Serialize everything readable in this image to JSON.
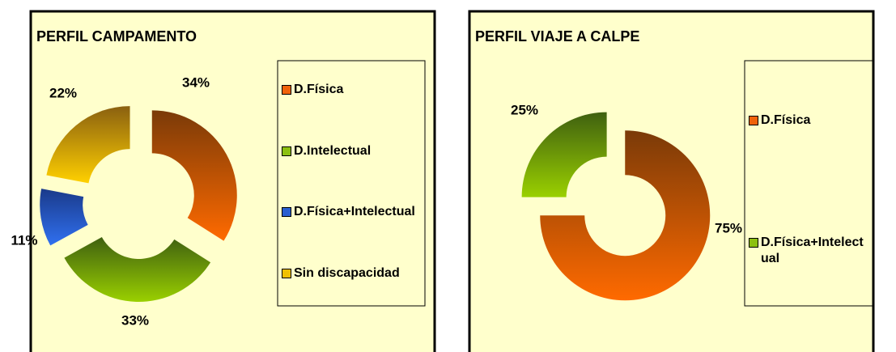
{
  "chart_data": [
    {
      "type": "donut",
      "title": "PERFIL CAMPAMENTO",
      "categories": [
        "D.Física",
        "D.Intelectual",
        "D.Física+Intelectual",
        "Sin discapacidad"
      ],
      "values": [
        34,
        33,
        11,
        22
      ],
      "value_labels": [
        "34%",
        "33%",
        "11%",
        "22%"
      ],
      "colors": [
        "#f0620a",
        "#8cc010",
        "#2a5fd0",
        "#f0c000"
      ]
    },
    {
      "type": "donut",
      "title": "PERFIL VIAJE A CALPE",
      "categories": [
        "D.Física",
        "D.Física+Intelectual"
      ],
      "values": [
        75,
        25
      ],
      "value_labels": [
        "75%",
        "25%"
      ],
      "colors": [
        "#f0620a",
        "#8cc010"
      ]
    }
  ]
}
